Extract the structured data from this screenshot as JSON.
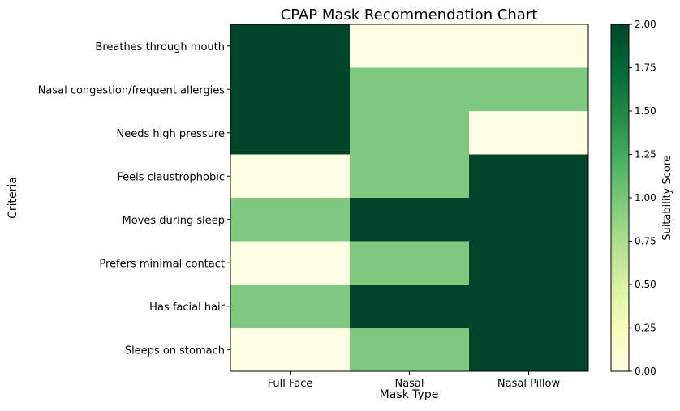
{
  "chart_data": {
    "type": "heatmap",
    "title": "CPAP Mask Recommendation Chart",
    "xlabel": "Mask Type",
    "ylabel": "Criteria",
    "x_categories": [
      "Full Face",
      "Nasal",
      "Nasal Pillow"
    ],
    "y_categories": [
      "Breathes through mouth",
      "Nasal congestion/frequent allergies",
      "Needs high pressure",
      "Feels claustrophobic",
      "Moves during sleep",
      "Prefers minimal contact",
      "Has facial hair",
      "Sleeps on stomach"
    ],
    "values": [
      [
        2,
        0,
        0
      ],
      [
        2,
        1,
        1
      ],
      [
        2,
        1,
        0
      ],
      [
        0,
        1,
        2
      ],
      [
        1,
        2,
        2
      ],
      [
        0,
        1,
        2
      ],
      [
        1,
        2,
        2
      ],
      [
        0,
        1,
        2
      ]
    ],
    "colorbar": {
      "label": "Suitability Score",
      "min": 0,
      "max": 2,
      "ticks": [
        "0.00",
        "0.25",
        "0.50",
        "0.75",
        "1.00",
        "1.25",
        "1.50",
        "1.75",
        "2.00"
      ],
      "colormap": "YlGn"
    },
    "colors": {
      "low": "#ffffe5",
      "mid": "#7fc97f",
      "high": "#004529"
    },
    "grid": false
  }
}
